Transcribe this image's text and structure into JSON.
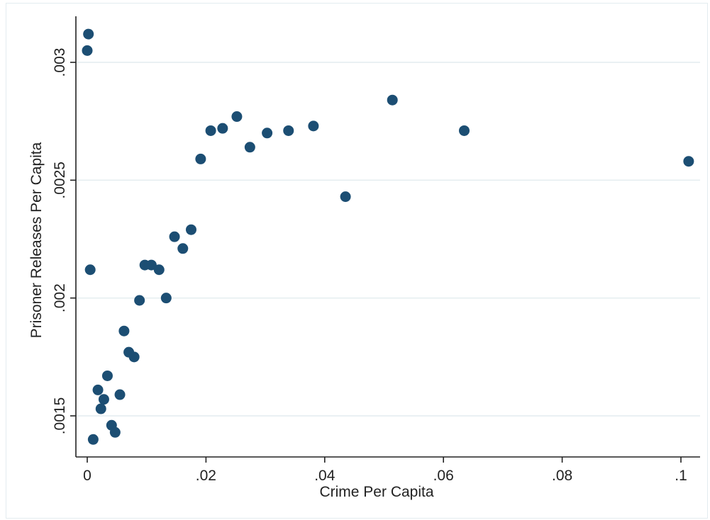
{
  "chart_data": {
    "type": "scatter",
    "xlabel": "Crime Per Capita",
    "ylabel": "Prisoner Releases Per Capita",
    "xlim": [
      0,
      0.1
    ],
    "ylim": [
      0.00135,
      0.00315
    ],
    "x_ticks": [
      {
        "value": 0,
        "label": "0"
      },
      {
        "value": 0.02,
        "label": ".02"
      },
      {
        "value": 0.04,
        "label": ".04"
      },
      {
        "value": 0.06,
        "label": ".06"
      },
      {
        "value": 0.08,
        "label": ".08"
      },
      {
        "value": 0.1,
        "label": ".1"
      }
    ],
    "y_ticks": [
      {
        "value": 0.0015,
        "label": ".0015"
      },
      {
        "value": 0.002,
        "label": ".002"
      },
      {
        "value": 0.0025,
        "label": ".0025"
      },
      {
        "value": 0.003,
        "label": ".003"
      }
    ],
    "grid": true,
    "point_color": "#1c4e73",
    "points": [
      {
        "x": 0.0002,
        "y": 0.00312
      },
      {
        "x": 0.0,
        "y": 0.00305
      },
      {
        "x": 0.0005,
        "y": 0.00212
      },
      {
        "x": 0.001,
        "y": 0.0014
      },
      {
        "x": 0.0018,
        "y": 0.00161
      },
      {
        "x": 0.0023,
        "y": 0.00153
      },
      {
        "x": 0.0028,
        "y": 0.00157
      },
      {
        "x": 0.0034,
        "y": 0.00167
      },
      {
        "x": 0.0041,
        "y": 0.00146
      },
      {
        "x": 0.0047,
        "y": 0.00143
      },
      {
        "x": 0.0055,
        "y": 0.00159
      },
      {
        "x": 0.0062,
        "y": 0.00186
      },
      {
        "x": 0.007,
        "y": 0.00177
      },
      {
        "x": 0.0079,
        "y": 0.00175
      },
      {
        "x": 0.0088,
        "y": 0.00199
      },
      {
        "x": 0.0097,
        "y": 0.00214
      },
      {
        "x": 0.0108,
        "y": 0.00214
      },
      {
        "x": 0.0121,
        "y": 0.00212
      },
      {
        "x": 0.0133,
        "y": 0.002
      },
      {
        "x": 0.0147,
        "y": 0.00226
      },
      {
        "x": 0.0161,
        "y": 0.00221
      },
      {
        "x": 0.0175,
        "y": 0.00229
      },
      {
        "x": 0.0191,
        "y": 0.00259
      },
      {
        "x": 0.0208,
        "y": 0.00271
      },
      {
        "x": 0.0228,
        "y": 0.00272
      },
      {
        "x": 0.0252,
        "y": 0.00277
      },
      {
        "x": 0.0274,
        "y": 0.00264
      },
      {
        "x": 0.0303,
        "y": 0.0027
      },
      {
        "x": 0.0339,
        "y": 0.00271
      },
      {
        "x": 0.0381,
        "y": 0.00273
      },
      {
        "x": 0.0435,
        "y": 0.00243
      },
      {
        "x": 0.0514,
        "y": 0.00284
      },
      {
        "x": 0.0635,
        "y": 0.00271
      },
      {
        "x": 0.1013,
        "y": 0.00258
      }
    ]
  }
}
